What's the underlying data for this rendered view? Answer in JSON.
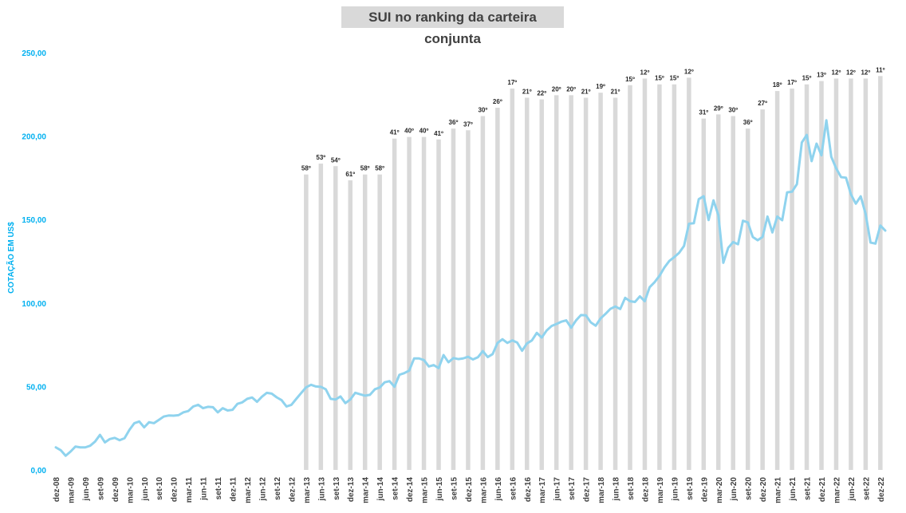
{
  "chart_data": {
    "type": "bar+line",
    "title": "SUI no ranking da carteira conjunta",
    "ylabel": "COTAÇÃO EM US$",
    "ylim": [
      0,
      250
    ],
    "yticks": [
      "0,00",
      "50,00",
      "100,00",
      "150,00",
      "200,00",
      "250,00"
    ],
    "xtick_labels": [
      "dez-08",
      "mar-09",
      "jun-09",
      "set-09",
      "dez-09",
      "mar-10",
      "jun-10",
      "set-10",
      "dez-10",
      "mar-11",
      "jun-11",
      "set-11",
      "dez-11",
      "mar-12",
      "jun-12",
      "set-12",
      "dez-12",
      "mar-13",
      "jun-13",
      "set-13",
      "dez-13",
      "mar-14",
      "jun-14",
      "set-14",
      "dez-14",
      "mar-15",
      "jun-15",
      "set-15",
      "dez-15",
      "mar-16",
      "jun-16",
      "set-16",
      "dez-16",
      "mar-17",
      "jun-17",
      "set-17",
      "dez-17",
      "mar-18",
      "jun-18",
      "set-18",
      "dez-18",
      "mar-19",
      "jun-19",
      "set-19",
      "dez-19",
      "mar-20",
      "jun-20",
      "set-20",
      "dez-20",
      "mar-21",
      "jun-21",
      "set-21",
      "dez-21",
      "mar-22",
      "jun-22",
      "set-22",
      "dez-22"
    ],
    "line_series": {
      "color": "#8fd3ee",
      "monthly_start": "dez-08",
      "values": [
        13.5,
        11.8,
        8.5,
        11,
        14,
        13.5,
        13.5,
        14.5,
        17,
        21,
        16.5,
        18.5,
        19.2,
        17.8,
        19,
        24,
        28,
        29,
        25.5,
        28.6,
        28,
        30,
        32,
        32.6,
        32.5,
        32.8,
        34.5,
        35.3,
        38,
        39,
        37,
        37.8,
        37.6,
        34.5,
        37,
        35.6,
        36,
        39.6,
        40.5,
        42.6,
        43.4,
        40.8,
        43.9,
        46.2,
        45.7,
        43.5,
        41.8,
        38,
        39,
        42.6,
        46.1,
        49.5,
        51,
        50,
        49.8,
        48.3,
        42.6,
        42.2,
        44,
        40,
        42.2,
        46.2,
        45.3,
        44.5,
        45,
        48.3,
        49.4,
        52.5,
        53.2,
        49.8,
        57,
        58,
        59.5,
        66.8,
        66.8,
        65.8,
        62,
        62.8,
        61,
        68.8,
        64.5,
        67,
        66.4,
        66.8,
        67.8,
        66.2,
        67.5,
        71.2,
        67.6,
        69.4,
        76.1,
        78.3,
        76.1,
        77.6,
        76.3,
        71.4,
        75.8,
        77.6,
        82.1,
        79.3,
        83.5,
        86.2,
        87.4,
        88.8,
        89.6,
        85.2,
        89.6,
        92.8,
        92.6,
        88.4,
        86.4,
        90.8,
        93.5,
        96.5,
        97.9,
        96.4,
        103.1,
        101.1,
        100.6,
        104,
        101.1,
        109.5,
        112.5,
        116.3,
        121.3,
        125.2,
        127.5,
        130.1,
        134.2,
        147.5,
        147.8,
        162.2,
        164,
        149.7,
        161.5,
        152.6,
        124.1,
        133.1,
        136.5,
        135.2,
        149.3,
        148.3,
        139.6,
        137.6,
        139.6,
        151.8,
        142.3,
        151.8,
        149.6,
        166.3,
        166.7,
        171.2,
        196.2,
        200.7,
        185,
        195.5,
        188.5,
        209.5,
        187.6,
        180.7,
        175.4,
        175.1,
        165.1,
        159.5,
        163.9,
        153.4,
        136.2,
        135.6,
        146.4,
        143.4
      ]
    },
    "bar_series": {
      "color": "#d9d9d9",
      "dates": [
        "mar-13",
        "jun-13",
        "set-13",
        "dez-13",
        "mar-14",
        "jun-14",
        "set-14",
        "dez-14",
        "mar-15",
        "jun-15",
        "set-15",
        "dez-15",
        "mar-16",
        "jun-16",
        "set-16",
        "dez-16",
        "mar-17",
        "jun-17",
        "set-17",
        "dez-17",
        "mar-18",
        "jun-18",
        "set-18",
        "dez-18",
        "mar-19",
        "jun-19",
        "set-19",
        "dez-19",
        "mar-20",
        "jun-20",
        "set-20",
        "dez-20",
        "mar-21",
        "jun-21",
        "set-21",
        "dez-21",
        "mar-22",
        "jun-22",
        "set-22",
        "dez-22"
      ],
      "heights": [
        177,
        183.5,
        182,
        173.5,
        177,
        177,
        198.5,
        199.5,
        199.5,
        198,
        204.5,
        203.5,
        212,
        217,
        228.5,
        223,
        222,
        224.5,
        224.5,
        223,
        226,
        223,
        230.5,
        234.5,
        231,
        231,
        235,
        210.5,
        213,
        212,
        204.5,
        216,
        227,
        228.5,
        231,
        233,
        234.5,
        234.5,
        234.5,
        236
      ],
      "labels": [
        "58º",
        "53º",
        "54º",
        "61º",
        "58º",
        "58º",
        "41º",
        "40º",
        "40º",
        "41º",
        "36º",
        "37º",
        "30º",
        "26º",
        "17º",
        "21º",
        "22º",
        "20º",
        "20º",
        "21º",
        "19º",
        "21º",
        "15º",
        "12º",
        "15º",
        "15º",
        "12º",
        "31º",
        "29º",
        "30º",
        "36º",
        "27º",
        "18º",
        "17º",
        "15º",
        "13º",
        "12º",
        "12º",
        "12º",
        "11º"
      ]
    },
    "grid": false,
    "legend": "none"
  }
}
